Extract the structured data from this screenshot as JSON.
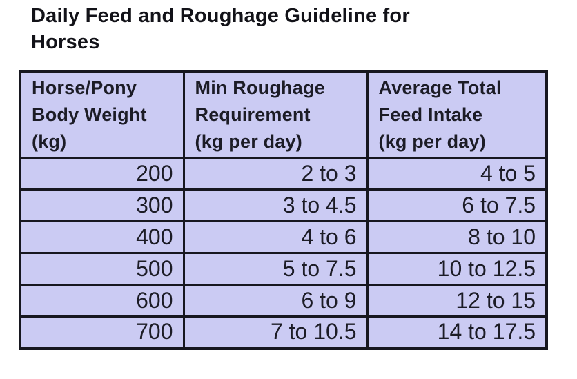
{
  "title": "Daily Feed and Roughage Guideline for\nHorses",
  "table": {
    "headers": [
      "Horse/Pony\nBody Weight\n(kg)",
      "Min Roughage\nRequirement\n(kg per day)",
      "Average Total\nFeed Intake\n(kg per day)"
    ],
    "rows": [
      [
        "200",
        "2 to 3",
        "4 to 5"
      ],
      [
        "300",
        "3 to 4.5",
        "6 to 7.5"
      ],
      [
        "400",
        "4 to 6",
        "8 to 10"
      ],
      [
        "500",
        "5 to 7.5",
        "10 to 12.5"
      ],
      [
        "600",
        "6 to 9",
        "12 to 15"
      ],
      [
        "700",
        "7 to 10.5",
        "14 to 17.5"
      ]
    ]
  },
  "chart_data": {
    "type": "table",
    "title": "Daily Feed and Roughage Guideline for Horses",
    "columns": [
      "Horse/Pony Body Weight (kg)",
      "Min Roughage Requirement (kg per day)",
      "Average Total Feed Intake (kg per day)"
    ],
    "rows": [
      [
        200,
        "2 to 3",
        "4 to 5"
      ],
      [
        300,
        "3 to 4.5",
        "6 to 7.5"
      ],
      [
        400,
        "4 to 6",
        "8 to 10"
      ],
      [
        500,
        "5 to 7.5",
        "10 to 12.5"
      ],
      [
        600,
        "6 to 9",
        "12 to 15"
      ],
      [
        700,
        "7 to 10.5",
        "14 to 17.5"
      ]
    ]
  },
  "colors": {
    "page_bg": "#ffffff",
    "cell_bg": "#cbcbf3",
    "border": "#17171f",
    "table_text": "#1c1c26",
    "title_text": "#121218"
  }
}
